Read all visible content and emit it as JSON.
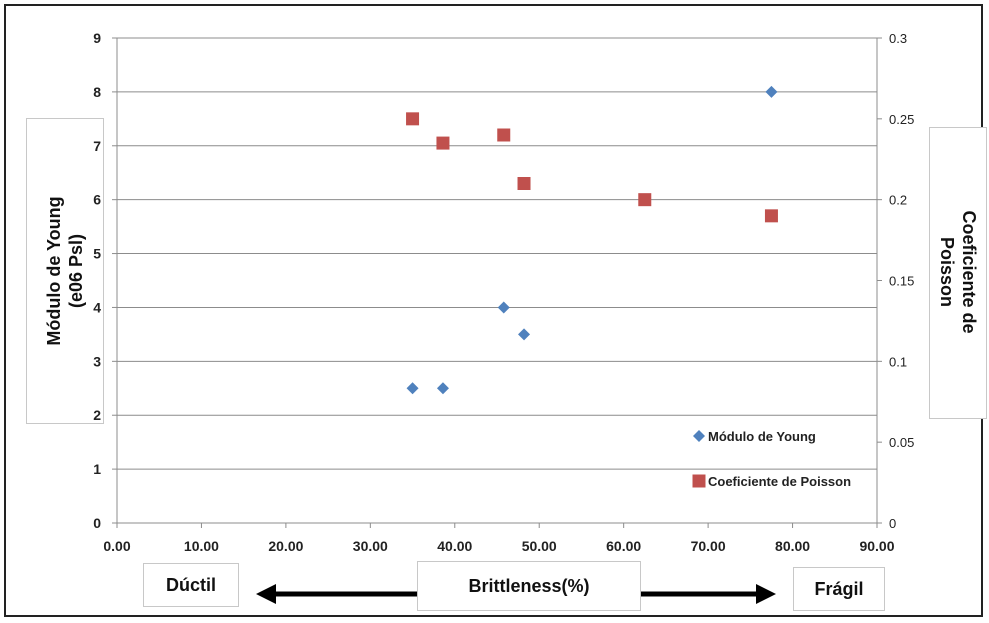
{
  "chart_data": {
    "type": "scatter",
    "x": {
      "ticks": [
        "0.00",
        "10.00",
        "20.00",
        "30.00",
        "40.00",
        "50.00",
        "60.00",
        "70.00",
        "80.00",
        "90.00"
      ],
      "range": [
        0,
        90
      ],
      "label": "Brittleness(%)"
    },
    "y_left": {
      "ticks": [
        "0",
        "1",
        "2",
        "3",
        "4",
        "5",
        "6",
        "7",
        "8",
        "9"
      ],
      "range": [
        0,
        9
      ],
      "label_lines": [
        "Módulo de Young",
        "(e06 Psl)"
      ]
    },
    "y_right": {
      "ticks": [
        "0",
        "0.05",
        "0.1",
        "0.15",
        "0.2",
        "0.25",
        "0.3"
      ],
      "range": [
        0,
        0.3
      ],
      "label_lines": [
        "Coeficiente de",
        "Poisson"
      ]
    },
    "grid": true,
    "legend_position": "bottom-right",
    "series": [
      {
        "name": "Módulo de Young",
        "axis": "left",
        "marker": "diamond",
        "color": "#4f81bd",
        "points": [
          [
            35.0,
            2.5
          ],
          [
            38.6,
            2.5
          ],
          [
            45.8,
            4.0
          ],
          [
            48.2,
            3.5
          ],
          [
            77.5,
            8.0
          ]
        ]
      },
      {
        "name": "Coeficiente de Poisson",
        "axis": "right",
        "marker": "square",
        "color": "#c0504d",
        "points": [
          [
            35.0,
            0.25
          ],
          [
            38.6,
            0.235
          ],
          [
            45.8,
            0.24
          ],
          [
            48.2,
            0.21
          ],
          [
            62.5,
            0.2
          ],
          [
            77.5,
            0.19
          ]
        ]
      }
    ]
  },
  "annotations": {
    "left_label": "Dúctil",
    "right_label": "Frágil"
  }
}
